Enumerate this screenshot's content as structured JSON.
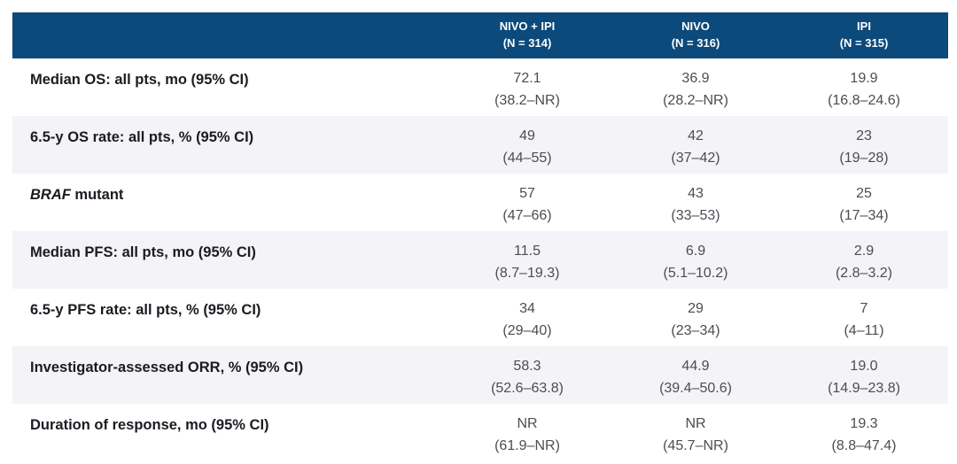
{
  "colors": {
    "header_bg": "#0c4a7c",
    "header_text": "#ffffff",
    "row_alt_bg": "#f3f3f8",
    "label_text": "#1b1b22",
    "value_text": "#4c4c54",
    "page_bg": "#ffffff"
  },
  "table": {
    "columns": [
      {
        "name": "NIVO + IPI",
        "n": "(N = 314)"
      },
      {
        "name": "NIVO",
        "n": "(N = 316)"
      },
      {
        "name": "IPI",
        "n": "(N = 315)"
      }
    ],
    "rows": [
      {
        "label_em": "",
        "label": "Median OS: all pts, mo (95% CI)",
        "cells": [
          {
            "value": "72.1",
            "ci": "(38.2–NR)"
          },
          {
            "value": "36.9",
            "ci": "(28.2–NR)"
          },
          {
            "value": "19.9",
            "ci": "(16.8–24.6)"
          }
        ]
      },
      {
        "label_em": "",
        "label": "6.5-y OS rate: all pts, % (95% CI)",
        "cells": [
          {
            "value": "49",
            "ci": "(44–55)"
          },
          {
            "value": "42",
            "ci": "(37–42)"
          },
          {
            "value": "23",
            "ci": "(19–28)"
          }
        ]
      },
      {
        "label_em": "BRAF",
        "label": " mutant",
        "cells": [
          {
            "value": "57",
            "ci": "(47–66)"
          },
          {
            "value": "43",
            "ci": "(33–53)"
          },
          {
            "value": "25",
            "ci": "(17–34)"
          }
        ]
      },
      {
        "label_em": "",
        "label": "Median PFS: all pts, mo (95% CI)",
        "cells": [
          {
            "value": "11.5",
            "ci": "(8.7–19.3)"
          },
          {
            "value": "6.9",
            "ci": "(5.1–10.2)"
          },
          {
            "value": "2.9",
            "ci": "(2.8–3.2)"
          }
        ]
      },
      {
        "label_em": "",
        "label": "6.5-y PFS rate: all pts, % (95% CI)",
        "cells": [
          {
            "value": "34",
            "ci": "(29–40)"
          },
          {
            "value": "29",
            "ci": "(23–34)"
          },
          {
            "value": "7",
            "ci": "(4–11)"
          }
        ]
      },
      {
        "label_em": "",
        "label": "Investigator-assessed ORR, % (95% CI)",
        "cells": [
          {
            "value": "58.3",
            "ci": "(52.6–63.8)"
          },
          {
            "value": "44.9",
            "ci": "(39.4–50.6)"
          },
          {
            "value": "19.0",
            "ci": "(14.9–23.8)"
          }
        ]
      },
      {
        "label_em": "",
        "label": "Duration of response, mo (95% CI)",
        "cells": [
          {
            "value": "NR",
            "ci": "(61.9–NR)"
          },
          {
            "value": "NR",
            "ci": "(45.7–NR)"
          },
          {
            "value": "19.3",
            "ci": "(8.8–47.4)"
          }
        ]
      }
    ]
  },
  "chart_data": {
    "type": "table",
    "columns": [
      "",
      "NIVO + IPI (N = 314)",
      "NIVO (N = 316)",
      "IPI (N = 315)"
    ],
    "rows": [
      [
        "Median OS: all pts, mo (95% CI)",
        "72.1 (38.2–NR)",
        "36.9 (28.2–NR)",
        "19.9 (16.8–24.6)"
      ],
      [
        "6.5-y OS rate: all pts, % (95% CI)",
        "49 (44–55)",
        "42 (37–42)",
        "23 (19–28)"
      ],
      [
        "BRAF mutant",
        "57 (47–66)",
        "43 (33–53)",
        "25 (17–34)"
      ],
      [
        "Median PFS: all pts, mo (95% CI)",
        "11.5 (8.7–19.3)",
        "6.9 (5.1–10.2)",
        "2.9 (2.8–3.2)"
      ],
      [
        "6.5-y PFS rate: all pts, % (95% CI)",
        "34 (29–40)",
        "29 (23–34)",
        "7 (4–11)"
      ],
      [
        "Investigator-assessed ORR, % (95% CI)",
        "58.3 (52.6–63.8)",
        "44.9 (39.4–50.6)",
        "19.0 (14.9–23.8)"
      ],
      [
        "Duration of response, mo (95% CI)",
        "NR (61.9–NR)",
        "NR (45.7–NR)",
        "19.3 (8.8–47.4)"
      ]
    ]
  }
}
